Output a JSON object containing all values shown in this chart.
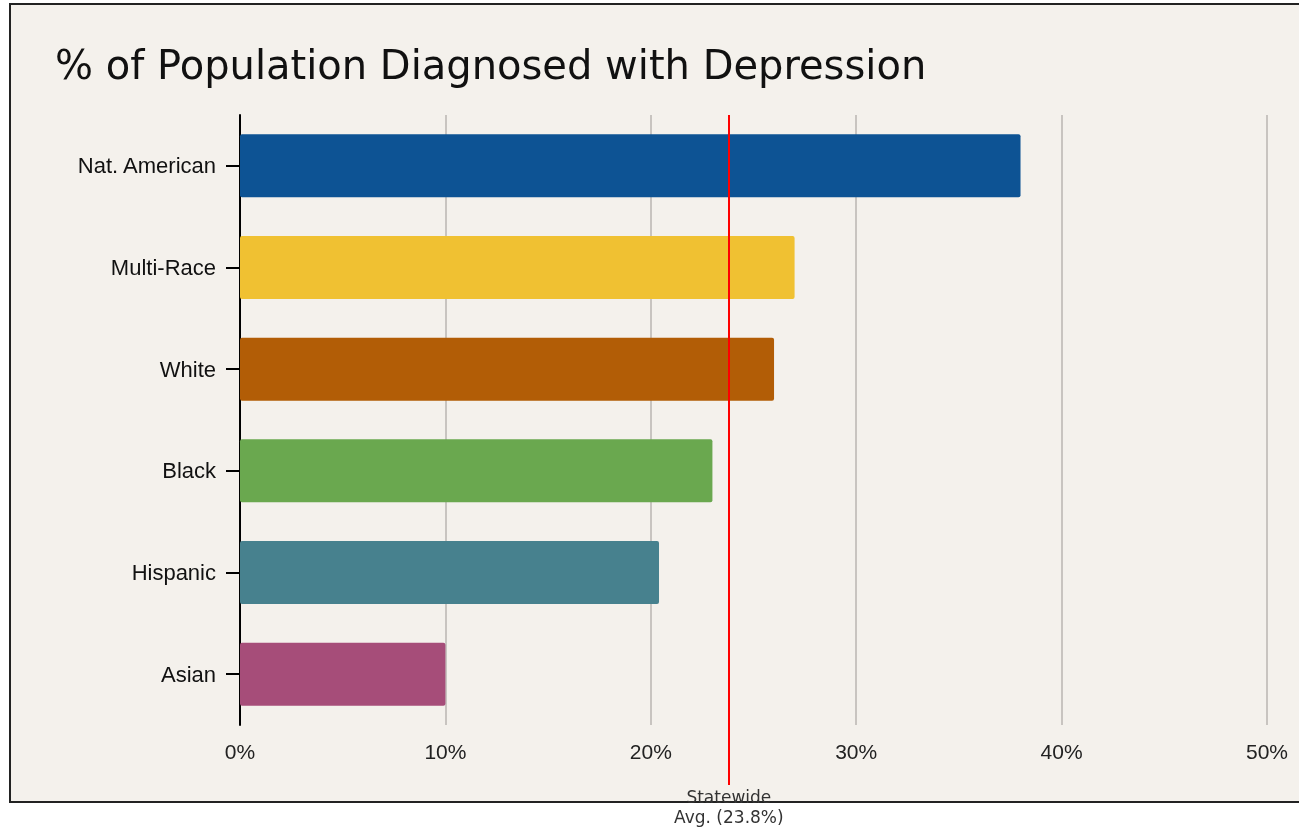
{
  "chart_data": {
    "type": "bar",
    "orientation": "horizontal",
    "title": "% of Population Diagnosed with Depression",
    "categories": [
      "Nat. American",
      "Multi-Race",
      "White",
      "Black",
      "Hispanic",
      "Asian"
    ],
    "values": [
      38,
      27,
      26,
      23,
      20.4,
      10
    ],
    "colors": [
      "#0d5394",
      "#f0c132",
      "#b25d06",
      "#6aa84f",
      "#47818e",
      "#a64d79"
    ],
    "xlim": [
      0,
      50
    ],
    "xticks": [
      {
        "value": 0,
        "label": "0%"
      },
      {
        "value": 10,
        "label": "10%"
      },
      {
        "value": 20,
        "label": "20%"
      },
      {
        "value": 30,
        "label": "30%"
      },
      {
        "value": 40,
        "label": "40%"
      },
      {
        "value": 50,
        "label": "50%"
      }
    ],
    "grid": "x",
    "ref_lines": [
      {
        "axis": "x",
        "value": 23.8,
        "label": "Statewide\nAvg. (23.8%)",
        "color": "#ff0000"
      }
    ]
  }
}
